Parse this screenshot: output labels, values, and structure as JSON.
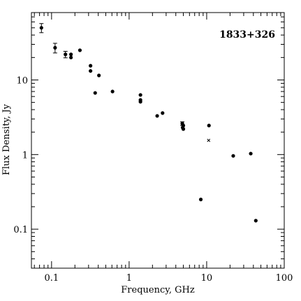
{
  "chart_data": {
    "type": "scatter",
    "title": "",
    "annotation": "1833+326",
    "xlabel": "Frequency, GHz",
    "ylabel": "Flux Density, Jy",
    "xscale": "log",
    "yscale": "log",
    "xlim": [
      0.055,
      100
    ],
    "ylim": [
      0.03,
      80
    ],
    "xticks": [
      {
        "value": 0.1,
        "label": "0.1"
      },
      {
        "value": 1,
        "label": "1"
      },
      {
        "value": 10,
        "label": "10"
      },
      {
        "value": 100,
        "label": "100"
      }
    ],
    "yticks": [
      {
        "value": 0.1,
        "label": "0.1"
      },
      {
        "value": 1,
        "label": "1"
      },
      {
        "value": 10,
        "label": "10"
      }
    ],
    "grid": false,
    "legend": false,
    "series": [
      {
        "marker": "filled-circle",
        "color": "#000000",
        "points": [
          {
            "x": 0.074,
            "y": 50,
            "yerr": [
              43,
              57
            ]
          },
          {
            "x": 0.111,
            "y": 27,
            "yerr": [
              23,
              31
            ]
          },
          {
            "x": 0.151,
            "y": 22,
            "yerr": [
              19.8,
              24.2
            ]
          },
          {
            "x": 0.178,
            "y": 22
          },
          {
            "x": 0.178,
            "y": 20
          },
          {
            "x": 0.232,
            "y": 25
          },
          {
            "x": 0.318,
            "y": 15.5
          },
          {
            "x": 0.318,
            "y": 13.2
          },
          {
            "x": 0.365,
            "y": 6.7
          },
          {
            "x": 0.408,
            "y": 11.5
          },
          {
            "x": 0.611,
            "y": 7.0
          },
          {
            "x": 1.4,
            "y": 6.3
          },
          {
            "x": 1.4,
            "y": 5.4
          },
          {
            "x": 1.4,
            "y": 5.1
          },
          {
            "x": 2.3,
            "y": 3.3
          },
          {
            "x": 2.7,
            "y": 3.6
          },
          {
            "x": 4.85,
            "y": 2.6,
            "yerr": [
              2.45,
              2.75
            ]
          },
          {
            "x": 5.0,
            "y": 2.45
          },
          {
            "x": 4.9,
            "y": 2.3
          },
          {
            "x": 5.0,
            "y": 2.2
          },
          {
            "x": 8.4,
            "y": 0.25
          },
          {
            "x": 10.7,
            "y": 2.45
          },
          {
            "x": 22,
            "y": 0.96
          },
          {
            "x": 37,
            "y": 1.03
          },
          {
            "x": 43,
            "y": 0.13
          }
        ]
      },
      {
        "marker": "small-cross",
        "color": "#000000",
        "points": [
          {
            "x": 10.6,
            "y": 1.55
          }
        ]
      }
    ]
  }
}
